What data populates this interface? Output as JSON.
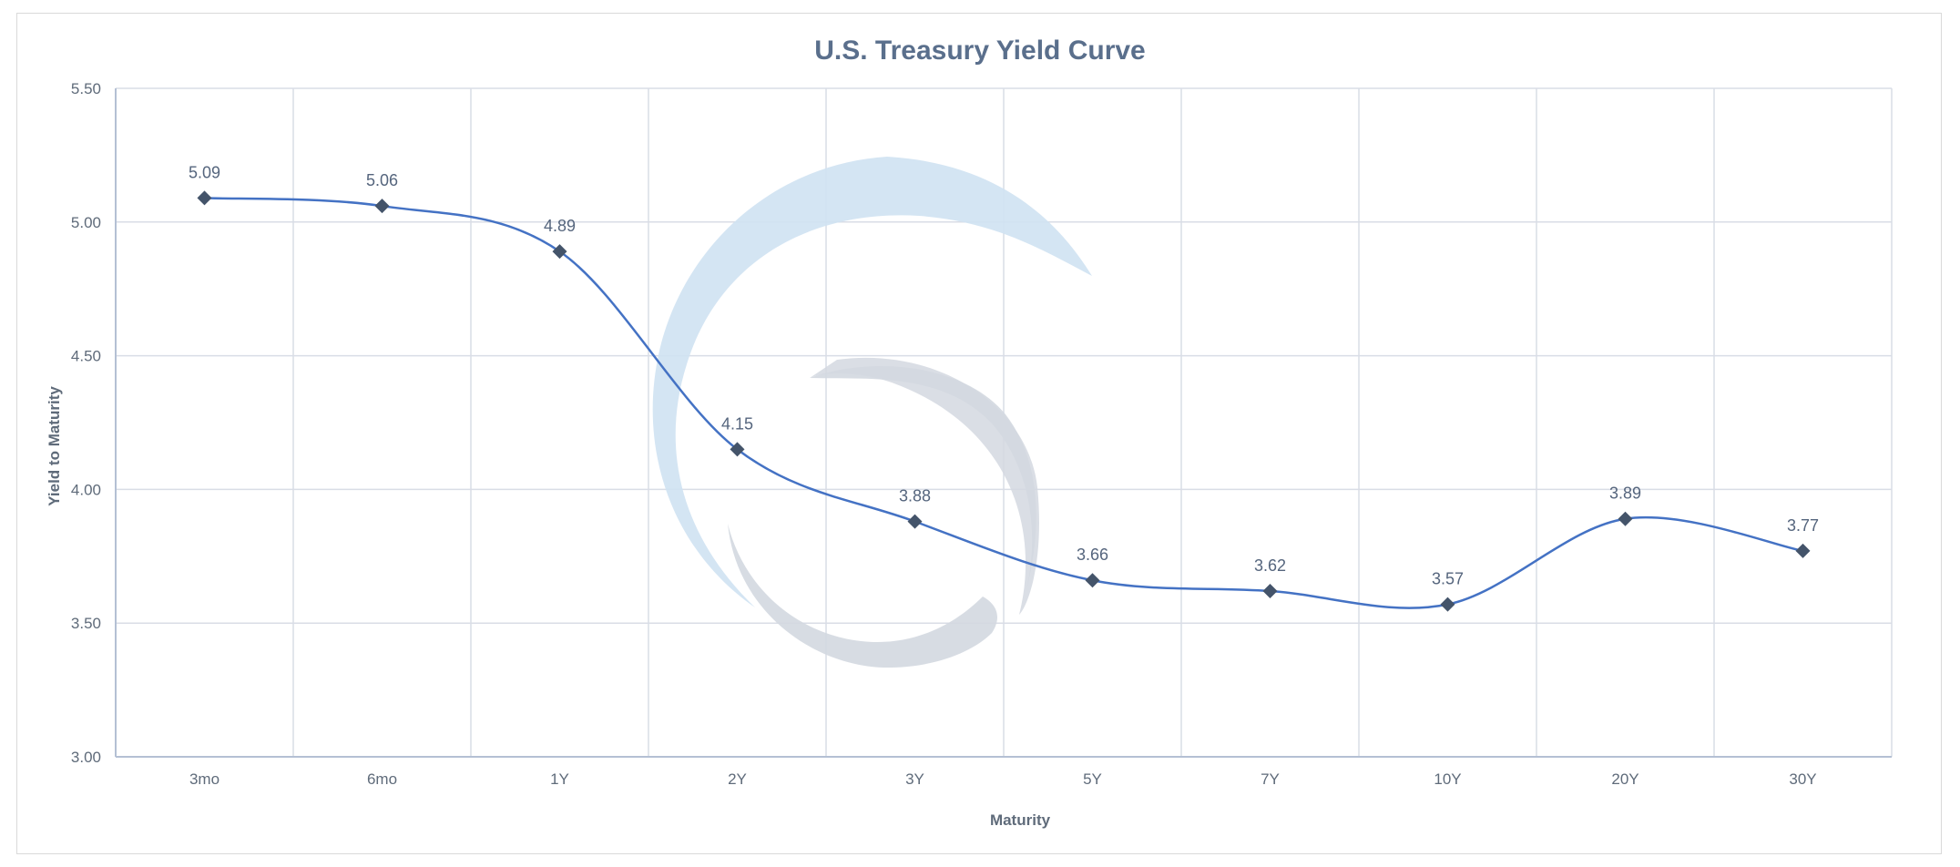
{
  "chart_data": {
    "type": "line",
    "title": "U.S. Treasury Yield Curve",
    "xlabel": "Maturity",
    "ylabel": "Yield to Maturity",
    "categories": [
      "3mo",
      "6mo",
      "1Y",
      "2Y",
      "3Y",
      "5Y",
      "7Y",
      "10Y",
      "20Y",
      "30Y"
    ],
    "series": [
      {
        "values": [
          5.09,
          5.06,
          4.89,
          4.15,
          3.88,
          3.66,
          3.62,
          3.57,
          3.89,
          3.77
        ]
      }
    ],
    "ylim": [
      3.0,
      5.5
    ],
    "yticks": [
      "3.00",
      "3.50",
      "4.00",
      "4.50",
      "5.00",
      "5.50"
    ],
    "data_labels": [
      "5.09",
      "5.06",
      "4.89",
      "4.15",
      "3.88",
      "3.66",
      "3.62",
      "3.57",
      "3.89",
      "3.77"
    ],
    "grid": true,
    "legend": "none",
    "smoothed": true,
    "marker": "diamond",
    "colors": {
      "line": "#4472c4",
      "marker": "#44546a",
      "grid": "#d9dde6",
      "axis": "#b4c0d4",
      "watermark_blue": "#cfe2f2",
      "watermark_gray": "#d3d8e0"
    }
  },
  "watermark": {
    "icon": "logo-swirl-icon"
  }
}
